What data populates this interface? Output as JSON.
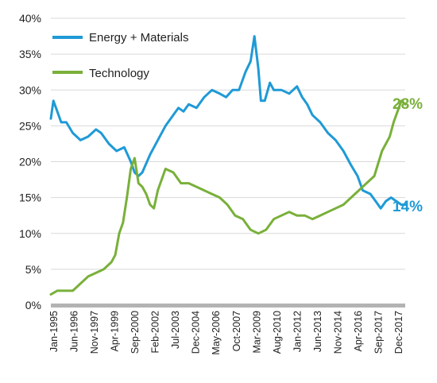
{
  "chart_data": {
    "type": "line",
    "title": "",
    "xlabel": "",
    "ylabel": "",
    "ylim": [
      0,
      40
    ],
    "y_ticks": [
      0,
      5,
      10,
      15,
      20,
      25,
      30,
      35,
      40
    ],
    "y_tick_labels": [
      "0%",
      "5%",
      "10%",
      "15%",
      "20%",
      "25%",
      "30%",
      "35%",
      "40%"
    ],
    "x_range": [
      "1995-01",
      "2017-12"
    ],
    "x_tick_labels": [
      "Jan-1995",
      "Jun-1996",
      "Nov-1997",
      "Apr-1999",
      "Sep-2000",
      "Feb-2002",
      "Jul-2003",
      "Dec-2004",
      "May-2006",
      "Oct-2007",
      "Mar-2009",
      "Aug-2010",
      "Jan-2012",
      "Jun-2013",
      "Nov-2014",
      "Apr-2016",
      "Sep-2017",
      "Dec-2017"
    ],
    "grid": "horizontal",
    "legend_position": "top-left",
    "series": [
      {
        "name": "Energy + Materials",
        "color": "#1f9ad6",
        "end_label": "14%",
        "x": [
          "1995-01",
          "1995-03",
          "1995-06",
          "1995-09",
          "1996-01",
          "1996-06",
          "1996-12",
          "1997-06",
          "1997-12",
          "1998-04",
          "1998-10",
          "1999-04",
          "1999-10",
          "2000-03",
          "2000-06",
          "2000-09",
          "2000-12",
          "2001-06",
          "2001-12",
          "2002-06",
          "2002-12",
          "2003-04",
          "2003-08",
          "2003-12",
          "2004-06",
          "2004-12",
          "2005-06",
          "2005-12",
          "2006-05",
          "2006-10",
          "2007-03",
          "2007-08",
          "2007-12",
          "2008-03",
          "2008-06",
          "2008-08",
          "2008-11",
          "2009-03",
          "2009-06",
          "2009-12",
          "2010-06",
          "2010-12",
          "2011-04",
          "2011-08",
          "2011-12",
          "2012-06",
          "2012-12",
          "2013-06",
          "2013-12",
          "2014-06",
          "2014-11",
          "2015-03",
          "2015-09",
          "2016-01",
          "2016-05",
          "2016-09",
          "2017-01",
          "2017-05",
          "2017-09",
          "2017-12"
        ],
        "values": [
          26,
          28.5,
          27,
          25.5,
          25.5,
          24,
          23,
          23.5,
          24.5,
          24,
          22.5,
          21.5,
          22,
          20,
          18.5,
          18,
          18.5,
          21,
          23,
          25,
          26.5,
          27.5,
          27,
          28,
          27.5,
          29,
          30,
          29.5,
          29,
          30,
          30,
          32.5,
          34,
          37.5,
          33,
          28.5,
          28.5,
          31,
          30,
          30,
          29.5,
          30.5,
          29,
          28,
          26.5,
          25.5,
          24,
          23,
          21.5,
          19.5,
          18,
          16,
          15.5,
          14.5,
          13.5,
          14.5,
          15,
          14.5,
          14,
          14
        ]
      },
      {
        "name": "Technology",
        "color": "#79b03a",
        "end_label": "28%",
        "x": [
          "1995-01",
          "1995-06",
          "1996-01",
          "1996-06",
          "1996-12",
          "1997-06",
          "1997-12",
          "1998-06",
          "1998-12",
          "1999-03",
          "1999-06",
          "1999-09",
          "1999-12",
          "2000-03",
          "2000-06",
          "2000-09",
          "2000-12",
          "2001-03",
          "2001-06",
          "2001-09",
          "2001-12",
          "2002-06",
          "2002-12",
          "2003-06",
          "2003-12",
          "2004-06",
          "2004-12",
          "2005-06",
          "2005-12",
          "2006-06",
          "2006-12",
          "2007-06",
          "2007-12",
          "2008-06",
          "2008-12",
          "2009-06",
          "2009-12",
          "2010-06",
          "2010-12",
          "2011-06",
          "2011-12",
          "2012-06",
          "2012-12",
          "2013-06",
          "2013-12",
          "2014-06",
          "2014-12",
          "2015-06",
          "2015-12",
          "2016-06",
          "2016-12",
          "2017-03",
          "2017-06",
          "2017-09",
          "2017-12"
        ],
        "values": [
          1.5,
          2,
          2,
          2,
          3,
          4,
          4.5,
          5,
          6,
          7,
          10,
          11.5,
          15,
          19,
          20.5,
          17,
          16.5,
          15.5,
          14,
          13.5,
          16,
          19,
          18.5,
          17,
          17,
          16.5,
          16,
          15.5,
          15,
          14,
          12.5,
          12,
          10.5,
          10,
          10.5,
          12,
          12.5,
          13,
          12.5,
          12.5,
          12,
          12.5,
          13,
          13.5,
          14,
          15,
          16,
          17,
          18,
          21.5,
          23.5,
          25.5,
          27,
          28.5,
          28
        ]
      }
    ]
  }
}
